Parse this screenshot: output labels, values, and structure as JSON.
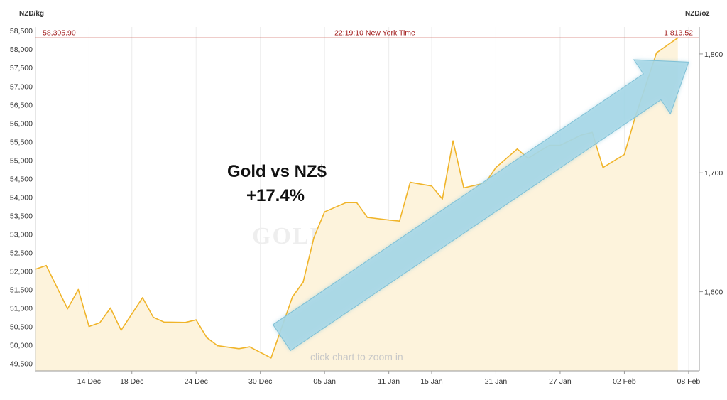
{
  "chart_data": {
    "type": "area",
    "title": "",
    "y_unit_left": "NZD/kg",
    "y_unit_right": "NZD/oz",
    "ylim_left": [
      49300,
      58600
    ],
    "yticks_left": [
      49500,
      50000,
      50500,
      51000,
      51500,
      52000,
      52500,
      53000,
      53500,
      54000,
      54500,
      55000,
      55500,
      56000,
      56500,
      57000,
      57500,
      58000,
      58500
    ],
    "yticks_left_labels": [
      "49,500",
      "50,000",
      "50,500",
      "51,000",
      "51,500",
      "52,000",
      "52,500",
      "53,000",
      "53,500",
      "54,000",
      "54,500",
      "55,000",
      "55,500",
      "56,000",
      "56,500",
      "57,000",
      "57,500",
      "58,000",
      "58,500"
    ],
    "yticks_right": [
      1600,
      1700,
      1800
    ],
    "yticks_right_labels": [
      "1,600",
      "1,700",
      "1,800"
    ],
    "x_domain": [
      "2011-12-09",
      "2012-02-09"
    ],
    "xticks": [
      "2011-12-14",
      "2011-12-18",
      "2011-12-24",
      "2011-12-30",
      "2012-01-05",
      "2012-01-11",
      "2012-01-15",
      "2012-01-21",
      "2012-01-27",
      "2012-02-02",
      "2012-02-08"
    ],
    "xtick_labels": [
      "14 Dec",
      "18 Dec",
      "24 Dec",
      "30 Dec",
      "05 Jan",
      "11 Jan",
      "15 Jan",
      "21 Jan",
      "27 Jan",
      "02 Feb",
      "08 Feb"
    ],
    "series": [
      {
        "color": "#f0b429",
        "fill": "#fdf3dc",
        "points": [
          [
            "2011-12-09",
            52050
          ],
          [
            "2011-12-10",
            52150
          ],
          [
            "2011-12-12",
            50980
          ],
          [
            "2011-12-13",
            51500
          ],
          [
            "2011-12-14",
            50500
          ],
          [
            "2011-12-15",
            50600
          ],
          [
            "2011-12-16",
            51000
          ],
          [
            "2011-12-17",
            50400
          ],
          [
            "2011-12-19",
            51280
          ],
          [
            "2011-12-20",
            50750
          ],
          [
            "2011-12-21",
            50620
          ],
          [
            "2011-12-23",
            50610
          ],
          [
            "2011-12-24",
            50680
          ],
          [
            "2011-12-25",
            50200
          ],
          [
            "2011-12-26",
            49980
          ],
          [
            "2011-12-28",
            49900
          ],
          [
            "2011-12-29",
            49950
          ],
          [
            "2011-12-31",
            49650
          ],
          [
            "2012-01-02",
            51300
          ],
          [
            "2012-01-03",
            51700
          ],
          [
            "2012-01-04",
            52900
          ],
          [
            "2012-01-05",
            53600
          ],
          [
            "2012-01-07",
            53850
          ],
          [
            "2012-01-08",
            53850
          ],
          [
            "2012-01-09",
            53450
          ],
          [
            "2012-01-11",
            53380
          ],
          [
            "2012-01-12",
            53350
          ],
          [
            "2012-01-13",
            54400
          ],
          [
            "2012-01-15",
            54300
          ],
          [
            "2012-01-16",
            53950
          ],
          [
            "2012-01-17",
            55520
          ],
          [
            "2012-01-18",
            54250
          ],
          [
            "2012-01-20",
            54380
          ],
          [
            "2012-01-21",
            54800
          ],
          [
            "2012-01-23",
            55300
          ],
          [
            "2012-01-24",
            55050
          ],
          [
            "2012-01-26",
            55400
          ],
          [
            "2012-01-27",
            55400
          ],
          [
            "2012-01-29",
            55680
          ],
          [
            "2012-01-30",
            55750
          ],
          [
            "2012-01-31",
            54800
          ],
          [
            "2012-02-02",
            55150
          ],
          [
            "2012-02-03",
            56150
          ],
          [
            "2012-02-05",
            57900
          ],
          [
            "2012-02-07",
            58305.9
          ]
        ]
      }
    ],
    "readout": {
      "left_value": "58,305.90",
      "time": "22:19:10 New York Time",
      "right_value": "1,813.52",
      "y": 58305.9,
      "color": "#c0392b"
    },
    "annotation": {
      "lines": [
        "Gold vs NZ$",
        "+17.4%"
      ]
    },
    "arrow": {
      "from": [
        "2012-01-01",
        50200
      ],
      "to": [
        "2012-02-08",
        57650
      ],
      "fill": "#a8d8e8",
      "stroke": "#7fc0d6"
    },
    "watermark": "GOLDPRICE.ORG",
    "hint": "click chart to zoom in",
    "grid": true,
    "legend": "none"
  }
}
